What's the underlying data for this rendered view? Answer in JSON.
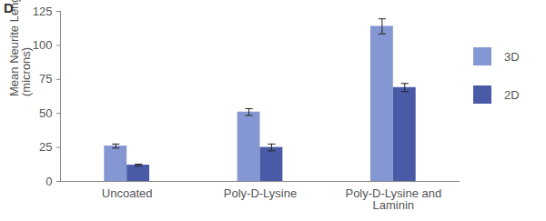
{
  "chart_data": {
    "type": "bar",
    "title": "D",
    "ylabel": "Mean Neurite Length\n(microns)",
    "categories": [
      "Uncoated",
      "Poly-D-Lysine",
      "Poly-D-Lysine and Laminin"
    ],
    "series": [
      {
        "name": "3D",
        "color": "#8597d2",
        "values": [
          26,
          51,
          114
        ],
        "errors": [
          1.5,
          2.5,
          5.5
        ]
      },
      {
        "name": "2D",
        "color": "#4b5aa7",
        "values": [
          12,
          25,
          69
        ],
        "errors": [
          0.7,
          2.5,
          3
        ]
      }
    ],
    "ylim": [
      0,
      125
    ],
    "yticks": [
      0,
      25,
      50,
      75,
      100,
      125
    ],
    "grid": false,
    "legend": "right"
  }
}
